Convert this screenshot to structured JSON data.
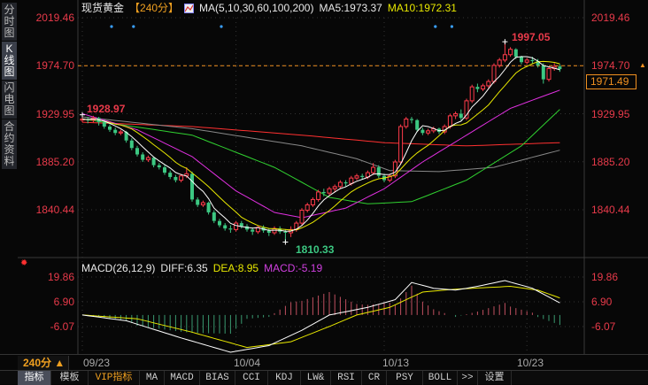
{
  "sidebar": {
    "items": [
      {
        "label": "分时图",
        "active": false
      },
      {
        "label": "K线图",
        "active": true
      },
      {
        "label": "闪电图",
        "active": false
      },
      {
        "label": "合约资料",
        "active": false
      }
    ]
  },
  "header": {
    "symbol": "现货黄金",
    "period": "【240分】",
    "ma_label": "MA(5,10,30,60,100,200)",
    "ma5": "MA5:1973.37",
    "ma10": "MA10:1972.31",
    "ma_icon": "chart-line-icon"
  },
  "price_axis": {
    "ticks": [
      "2019.46",
      "1974.70",
      "1929.95",
      "1885.20",
      "1840.44"
    ],
    "tick_values": [
      2019.46,
      1974.7,
      1929.95,
      1885.2,
      1840.44
    ],
    "current_price": "1971.49",
    "last_line": 1974.7
  },
  "annotations": {
    "high_left": "1928.97",
    "low": "1810.33",
    "high": "1997.05"
  },
  "macd": {
    "label": "MACD(26,12,9)",
    "diff": "DIFF:6.35",
    "dea": "DEA:8.95",
    "macd": "MACD:-5.19",
    "ticks": [
      "19.86",
      "6.90",
      "-6.07"
    ],
    "tick_values": [
      19.86,
      6.9,
      -6.07
    ]
  },
  "dates": [
    "09/23",
    "10/04",
    "10/13",
    "10/23"
  ],
  "timeframe": "240分 ▲",
  "tabs": [
    {
      "label": "指标",
      "active": true
    },
    {
      "label": "模板"
    },
    {
      "label": "VIP指标",
      "vip": true
    },
    {
      "label": "MA"
    },
    {
      "label": "MACD"
    },
    {
      "label": "BIAS"
    },
    {
      "label": "CCI"
    },
    {
      "label": "KDJ"
    },
    {
      "label": "LW&"
    },
    {
      "label": "RSI"
    },
    {
      "label": "CR"
    },
    {
      "label": "PSY"
    },
    {
      "label": "BOLL"
    },
    {
      "label": ">>"
    },
    {
      "label": "设置"
    }
  ],
  "colors": {
    "up": "#ff3b4a",
    "down": "#3cc882",
    "ma5": "#ffffff",
    "ma10": "#e8e800",
    "ma30": "#e030e0",
    "ma60": "#30d030",
    "ma100": "#888888",
    "ma200": "#ff3030",
    "accent": "#f09020"
  },
  "chart_data": {
    "type": "candlestick",
    "ylim": [
      1800,
      2025
    ],
    "x_labels": [
      "09/23",
      "10/04",
      "10/13",
      "10/23"
    ],
    "x_label_bars": [
      0,
      28,
      55,
      81
    ],
    "signal_dot_bars": [
      5,
      9,
      25,
      64,
      67
    ],
    "ohlc": [
      [
        1924,
        1928.97,
        1922,
        1925
      ],
      [
        1925,
        1927,
        1921,
        1924
      ],
      [
        1924,
        1928,
        1922,
        1926
      ],
      [
        1926,
        1927,
        1919,
        1922
      ],
      [
        1922,
        1924,
        1916,
        1918
      ],
      [
        1918,
        1920,
        1913,
        1915
      ],
      [
        1915,
        1917,
        1910,
        1912
      ],
      [
        1912,
        1915,
        1910,
        1913
      ],
      [
        1913,
        1914,
        1903,
        1905
      ],
      [
        1905,
        1907,
        1896,
        1898
      ],
      [
        1898,
        1900,
        1890,
        1892
      ],
      [
        1892,
        1894,
        1885,
        1887
      ],
      [
        1887,
        1891,
        1885,
        1889
      ],
      [
        1889,
        1890,
        1880,
        1882
      ],
      [
        1882,
        1884,
        1878,
        1880
      ],
      [
        1880,
        1882,
        1873,
        1875
      ],
      [
        1875,
        1877,
        1869,
        1871
      ],
      [
        1871,
        1873,
        1866,
        1868
      ],
      [
        1868,
        1874,
        1866,
        1872
      ],
      [
        1872,
        1880,
        1870,
        1874
      ],
      [
        1874,
        1876,
        1848,
        1850
      ],
      [
        1850,
        1852,
        1843,
        1845
      ],
      [
        1845,
        1849,
        1843,
        1847
      ],
      [
        1847,
        1848,
        1836,
        1838
      ],
      [
        1838,
        1840,
        1828,
        1830
      ],
      [
        1830,
        1832,
        1824,
        1826
      ],
      [
        1826,
        1828,
        1821,
        1823
      ],
      [
        1823,
        1826,
        1819,
        1822
      ],
      [
        1822,
        1830,
        1820,
        1828
      ],
      [
        1828,
        1830,
        1823,
        1825
      ],
      [
        1825,
        1827,
        1820,
        1822
      ],
      [
        1822,
        1824,
        1817,
        1820
      ],
      [
        1820,
        1826,
        1818,
        1824
      ],
      [
        1824,
        1826,
        1819,
        1821
      ],
      [
        1821,
        1823,
        1816,
        1819
      ],
      [
        1819,
        1825,
        1817,
        1823
      ],
      [
        1823,
        1825,
        1818,
        1820
      ],
      [
        1820,
        1822,
        1810.33,
        1819
      ],
      [
        1819,
        1825,
        1815,
        1822
      ],
      [
        1822,
        1830,
        1820,
        1828
      ],
      [
        1828,
        1842,
        1826,
        1840
      ],
      [
        1840,
        1847,
        1838,
        1845
      ],
      [
        1845,
        1852,
        1843,
        1850
      ],
      [
        1850,
        1859,
        1848,
        1857
      ],
      [
        1857,
        1860,
        1853,
        1856
      ],
      [
        1856,
        1862,
        1854,
        1860
      ],
      [
        1860,
        1864,
        1857,
        1862
      ],
      [
        1862,
        1868,
        1860,
        1866
      ],
      [
        1866,
        1868,
        1862,
        1865
      ],
      [
        1865,
        1872,
        1863,
        1870
      ],
      [
        1870,
        1874,
        1868,
        1872
      ],
      [
        1872,
        1874,
        1869,
        1871
      ],
      [
        1871,
        1877,
        1869,
        1875
      ],
      [
        1875,
        1884,
        1873,
        1880
      ],
      [
        1880,
        1882,
        1870,
        1872
      ],
      [
        1872,
        1874,
        1866,
        1868
      ],
      [
        1868,
        1874,
        1866,
        1872
      ],
      [
        1872,
        1887,
        1870,
        1885
      ],
      [
        1885,
        1920,
        1883,
        1918
      ],
      [
        1918,
        1927,
        1916,
        1925
      ],
      [
        1925,
        1927,
        1921,
        1924
      ],
      [
        1924,
        1925,
        1913,
        1915
      ],
      [
        1915,
        1917,
        1910,
        1912
      ],
      [
        1912,
        1916,
        1910,
        1914
      ],
      [
        1914,
        1918,
        1912,
        1916
      ],
      [
        1916,
        1917,
        1911,
        1913
      ],
      [
        1913,
        1920,
        1911,
        1918
      ],
      [
        1918,
        1930,
        1916,
        1928
      ],
      [
        1928,
        1932,
        1925,
        1930
      ],
      [
        1930,
        1934,
        1924,
        1926
      ],
      [
        1926,
        1944,
        1924,
        1942
      ],
      [
        1942,
        1957,
        1940,
        1955
      ],
      [
        1955,
        1958,
        1950,
        1953
      ],
      [
        1953,
        1958,
        1951,
        1956
      ],
      [
        1956,
        1962,
        1954,
        1960
      ],
      [
        1960,
        1977,
        1958,
        1975
      ],
      [
        1975,
        1982,
        1973,
        1980
      ],
      [
        1980,
        1997.05,
        1978,
        1985
      ],
      [
        1985,
        1992,
        1983,
        1990
      ],
      [
        1990,
        1991,
        1981,
        1983
      ],
      [
        1983,
        1984,
        1976,
        1978
      ],
      [
        1978,
        1982,
        1976,
        1980
      ],
      [
        1980,
        1983,
        1977,
        1979
      ],
      [
        1979,
        1981,
        1973,
        1975
      ],
      [
        1975,
        1977,
        1958,
        1962
      ],
      [
        1962,
        1974,
        1960,
        1972
      ],
      [
        1972,
        1977,
        1970,
        1974
      ],
      [
        1974,
        1976,
        1969,
        1971.49
      ]
    ],
    "ma_keyframes": {
      "ma30": [
        [
          0,
          1930
        ],
        [
          10,
          1915
        ],
        [
          20,
          1890
        ],
        [
          28,
          1858
        ],
        [
          35,
          1838
        ],
        [
          40,
          1833
        ],
        [
          48,
          1842
        ],
        [
          55,
          1860
        ],
        [
          62,
          1885
        ],
        [
          70,
          1910
        ],
        [
          78,
          1935
        ],
        [
          87,
          1952
        ]
      ],
      "ma60": [
        [
          0,
          1925
        ],
        [
          20,
          1910
        ],
        [
          35,
          1880
        ],
        [
          45,
          1852
        ],
        [
          52,
          1846
        ],
        [
          60,
          1848
        ],
        [
          70,
          1868
        ],
        [
          80,
          1900
        ],
        [
          87,
          1934
        ]
      ],
      "ma100": [
        [
          0,
          1927
        ],
        [
          20,
          1916
        ],
        [
          40,
          1900
        ],
        [
          50,
          1888
        ],
        [
          56,
          1877
        ],
        [
          65,
          1876
        ],
        [
          75,
          1880
        ],
        [
          87,
          1896
        ]
      ],
      "ma200": [
        [
          0,
          1922
        ],
        [
          20,
          1918
        ],
        [
          40,
          1910
        ],
        [
          55,
          1903
        ],
        [
          70,
          1900
        ],
        [
          87,
          1903
        ]
      ]
    },
    "macd_keyframes": {
      "diff": [
        [
          0,
          0
        ],
        [
          8,
          -3
        ],
        [
          18,
          -12
        ],
        [
          27,
          -19.5
        ],
        [
          34,
          -16
        ],
        [
          40,
          -8
        ],
        [
          45,
          0
        ],
        [
          52,
          4
        ],
        [
          57,
          8
        ],
        [
          60,
          17
        ],
        [
          64,
          14
        ],
        [
          68,
          13
        ],
        [
          72,
          15
        ],
        [
          77,
          18
        ],
        [
          82,
          14
        ],
        [
          87,
          6.35
        ]
      ],
      "dea": [
        [
          0,
          0
        ],
        [
          10,
          -2
        ],
        [
          20,
          -9
        ],
        [
          30,
          -17
        ],
        [
          38,
          -14
        ],
        [
          45,
          -6
        ],
        [
          50,
          0
        ],
        [
          56,
          4
        ],
        [
          62,
          12
        ],
        [
          68,
          13.5
        ],
        [
          78,
          15
        ],
        [
          83,
          13
        ],
        [
          87,
          8.95
        ]
      ]
    }
  }
}
